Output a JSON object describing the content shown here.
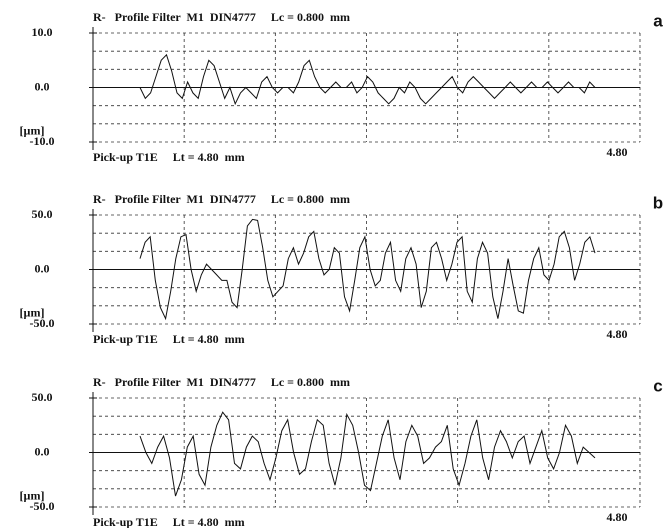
{
  "chart_data": [
    {
      "type": "line",
      "title": "R-   Profile Filter  M1  DIN4777     Lc = 0.800  mm",
      "panel_label": "a",
      "ylabel": "[µm]",
      "xlabel": "Pick-up T1E     Lt = 4.80  mm",
      "end_label": "4.80",
      "color": "#111111",
      "grid": true,
      "ylim": [
        -10,
        10
      ],
      "yticks": [
        {
          "value": 10,
          "label": "10.0"
        },
        {
          "value": 0,
          "label": "0.0"
        },
        {
          "value": -10,
          "label": "-10.0"
        }
      ],
      "values": [
        0,
        -2,
        -1,
        2,
        5,
        6,
        3,
        -1,
        -2,
        1,
        -1,
        -2,
        2,
        5,
        4,
        1,
        -2,
        0,
        -3,
        -1,
        0,
        -1,
        -2,
        1,
        2,
        0,
        -1,
        0,
        0,
        -1,
        1,
        4,
        5,
        2,
        0,
        -1,
        0,
        1,
        0,
        0,
        1,
        -1,
        0,
        2,
        1,
        -1,
        -2,
        -3,
        -2,
        0,
        -1,
        1,
        0,
        -2,
        -3,
        -2,
        -1,
        0,
        1,
        2,
        0,
        -1,
        1,
        2,
        1,
        0,
        -1,
        -2,
        -1,
        0,
        1,
        0,
        -1,
        0,
        1,
        0,
        0,
        1,
        0,
        -1,
        0,
        1,
        0,
        0,
        -1,
        1,
        0
      ]
    },
    {
      "type": "line",
      "title": "R-   Profile Filter  M1  DIN4777     Lc = 0.800  mm",
      "panel_label": "b",
      "ylabel": "[µm]",
      "xlabel": "Pick-up T1E     Lt = 4.80  mm",
      "end_label": "4.80",
      "color": "#111111",
      "grid": true,
      "ylim": [
        -50,
        50
      ],
      "yticks": [
        {
          "value": 50,
          "label": "50.0"
        },
        {
          "value": 0,
          "label": "0.0"
        },
        {
          "value": -50,
          "label": "-50.0"
        }
      ],
      "values": [
        10,
        25,
        30,
        -10,
        -35,
        -45,
        -20,
        10,
        30,
        32,
        0,
        -20,
        -5,
        5,
        0,
        -5,
        -10,
        -10,
        -30,
        -35,
        0,
        40,
        46,
        45,
        20,
        -10,
        -25,
        -20,
        -15,
        10,
        20,
        5,
        15,
        30,
        35,
        10,
        -5,
        0,
        20,
        15,
        -25,
        -38,
        -10,
        20,
        30,
        0,
        -15,
        -10,
        15,
        25,
        -10,
        -20,
        10,
        20,
        5,
        -35,
        -20,
        20,
        25,
        10,
        -10,
        5,
        25,
        30,
        -20,
        -30,
        10,
        25,
        15,
        -25,
        -45,
        -20,
        10,
        -15,
        -38,
        -40,
        -10,
        10,
        20,
        -5,
        -10,
        5,
        30,
        35,
        20,
        -10,
        5,
        25,
        30,
        15
      ]
    },
    {
      "type": "line",
      "title": "R-   Profile Filter  M1  DIN4777     Lc = 0.800  mm",
      "panel_label": "c",
      "ylabel": "[µm]",
      "xlabel": "Pick-up T1E     Lt = 4.80  mm",
      "end_label": "4.80",
      "color": "#111111",
      "grid": true,
      "ylim": [
        -50,
        50
      ],
      "yticks": [
        {
          "value": 50,
          "label": "50.0"
        },
        {
          "value": 0,
          "label": "0.0"
        },
        {
          "value": -50,
          "label": "-50.0"
        }
      ],
      "values": [
        15,
        0,
        -10,
        5,
        15,
        -5,
        -40,
        -25,
        5,
        15,
        -20,
        -30,
        5,
        25,
        37,
        30,
        -10,
        -15,
        5,
        15,
        10,
        -10,
        -25,
        -5,
        20,
        30,
        0,
        -20,
        -15,
        10,
        30,
        25,
        -10,
        -30,
        -5,
        35,
        25,
        0,
        -30,
        -35,
        -10,
        15,
        30,
        -5,
        -25,
        10,
        25,
        15,
        -10,
        -5,
        5,
        10,
        25,
        -15,
        -30,
        -10,
        15,
        30,
        -5,
        -25,
        5,
        20,
        10,
        -5,
        10,
        15,
        -10,
        5,
        20,
        -5,
        -15,
        0,
        25,
        15,
        -10,
        5,
        0,
        -5
      ]
    }
  ]
}
